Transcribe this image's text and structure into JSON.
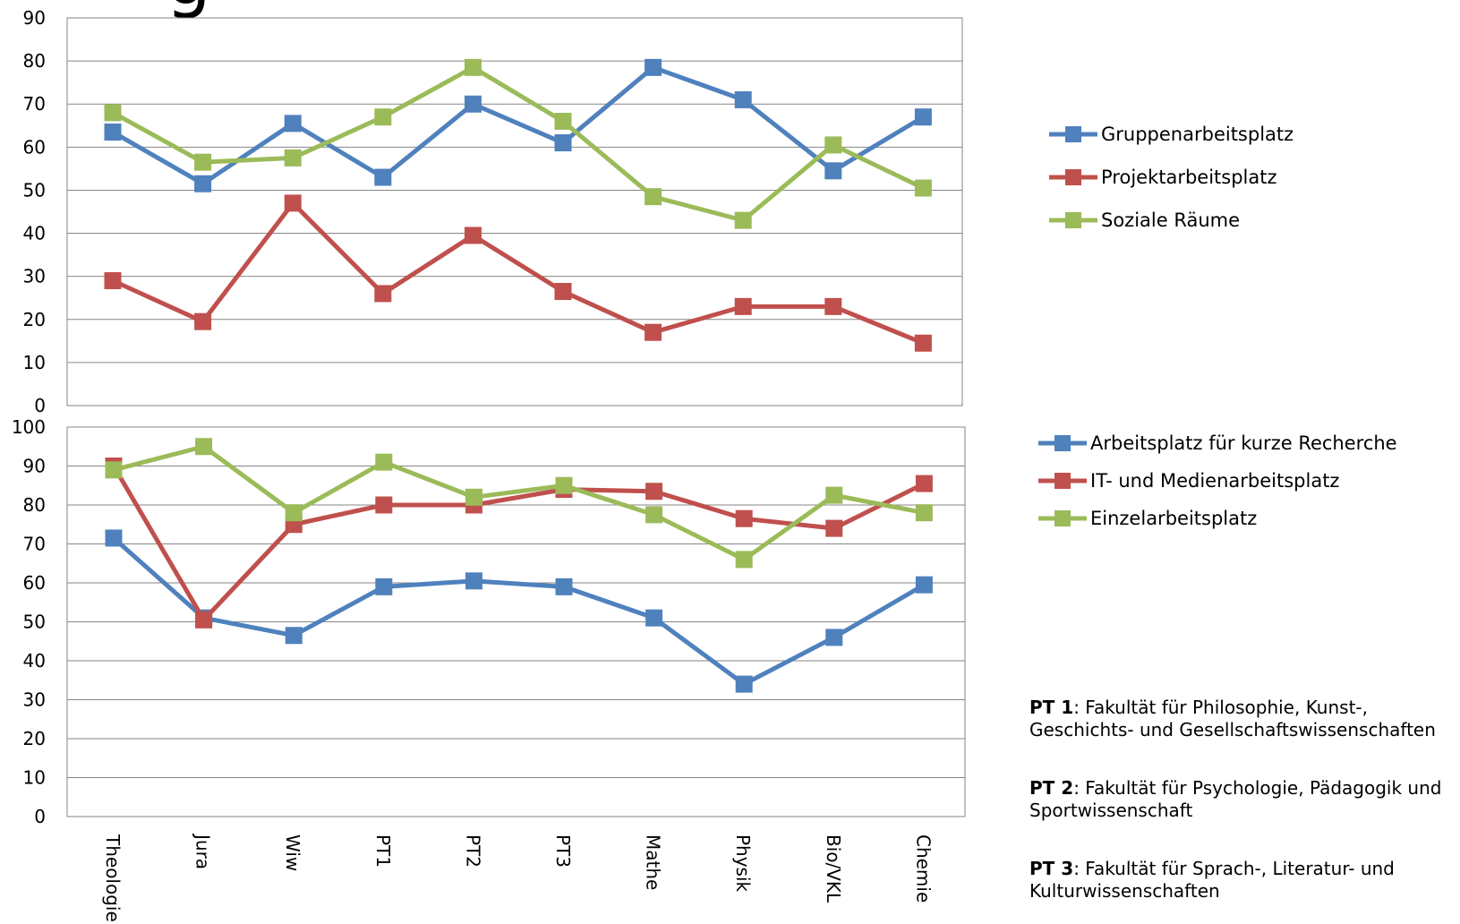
{
  "chart_data": [
    {
      "type": "line",
      "categories": [
        "Theologie",
        "Jura",
        "Wiw",
        "PT1",
        "PT2",
        "PT3",
        "Mathe",
        "Physik",
        "Bio/VKL",
        "Chemie"
      ],
      "ylim": [
        0,
        90
      ],
      "yticks": [
        0,
        10,
        20,
        30,
        40,
        50,
        60,
        70,
        80,
        90
      ],
      "grid": true,
      "legend": "right",
      "series": [
        {
          "name": "Gruppenarbeitsplatz",
          "color": "#4F81BD",
          "values": [
            63.5,
            51.5,
            65.5,
            53,
            70,
            61,
            78.5,
            71,
            54.5,
            67
          ]
        },
        {
          "name": "Projektarbeitsplatz",
          "color": "#C0504D",
          "values": [
            29,
            19.5,
            47,
            26,
            39.5,
            26.5,
            17,
            23,
            23,
            14.5
          ]
        },
        {
          "name": "Soziale Räume",
          "color": "#9BBB59",
          "values": [
            68,
            56.5,
            57.5,
            67,
            78.5,
            66,
            48.5,
            43,
            60.5,
            50.5
          ]
        }
      ]
    },
    {
      "type": "line",
      "categories": [
        "Theologie",
        "Jura",
        "Wiw",
        "PT1",
        "PT2",
        "PT3",
        "Mathe",
        "Physik",
        "Bio/VKL",
        "Chemie"
      ],
      "ylim": [
        0,
        100
      ],
      "yticks": [
        0,
        10,
        20,
        30,
        40,
        50,
        60,
        70,
        80,
        90,
        100
      ],
      "grid": true,
      "legend": "right",
      "series": [
        {
          "name": "Arbeitsplatz für kurze Recherche",
          "color": "#4F81BD",
          "values": [
            71.5,
            51,
            46.5,
            59,
            60.5,
            59,
            51,
            34,
            46,
            59.5
          ]
        },
        {
          "name": "IT- und Medienarbeitsplatz",
          "color": "#C0504D",
          "values": [
            90,
            50.5,
            75,
            80,
            80,
            84,
            83.5,
            76.5,
            74,
            85.5
          ]
        },
        {
          "name": "Einzelarbeitsplatz",
          "color": "#9BBB59",
          "values": [
            89,
            95,
            78,
            91,
            82,
            85,
            77.5,
            66,
            82.5,
            78
          ]
        }
      ]
    }
  ],
  "title_fragment": "g",
  "notes": [
    {
      "bold": "PT 1",
      "text": ": Fakultät für Philosophie, Kunst-, Geschichts- und Gesellschaftswissenschaften"
    },
    {
      "bold": "PT 2",
      "text": ": Fakultät für Psychologie, Pädagogik und Sportwissenschaft"
    },
    {
      "bold": "PT 3",
      "text": ": Fakultät für Sprach-, Literatur- und Kulturwissenschaften"
    }
  ]
}
